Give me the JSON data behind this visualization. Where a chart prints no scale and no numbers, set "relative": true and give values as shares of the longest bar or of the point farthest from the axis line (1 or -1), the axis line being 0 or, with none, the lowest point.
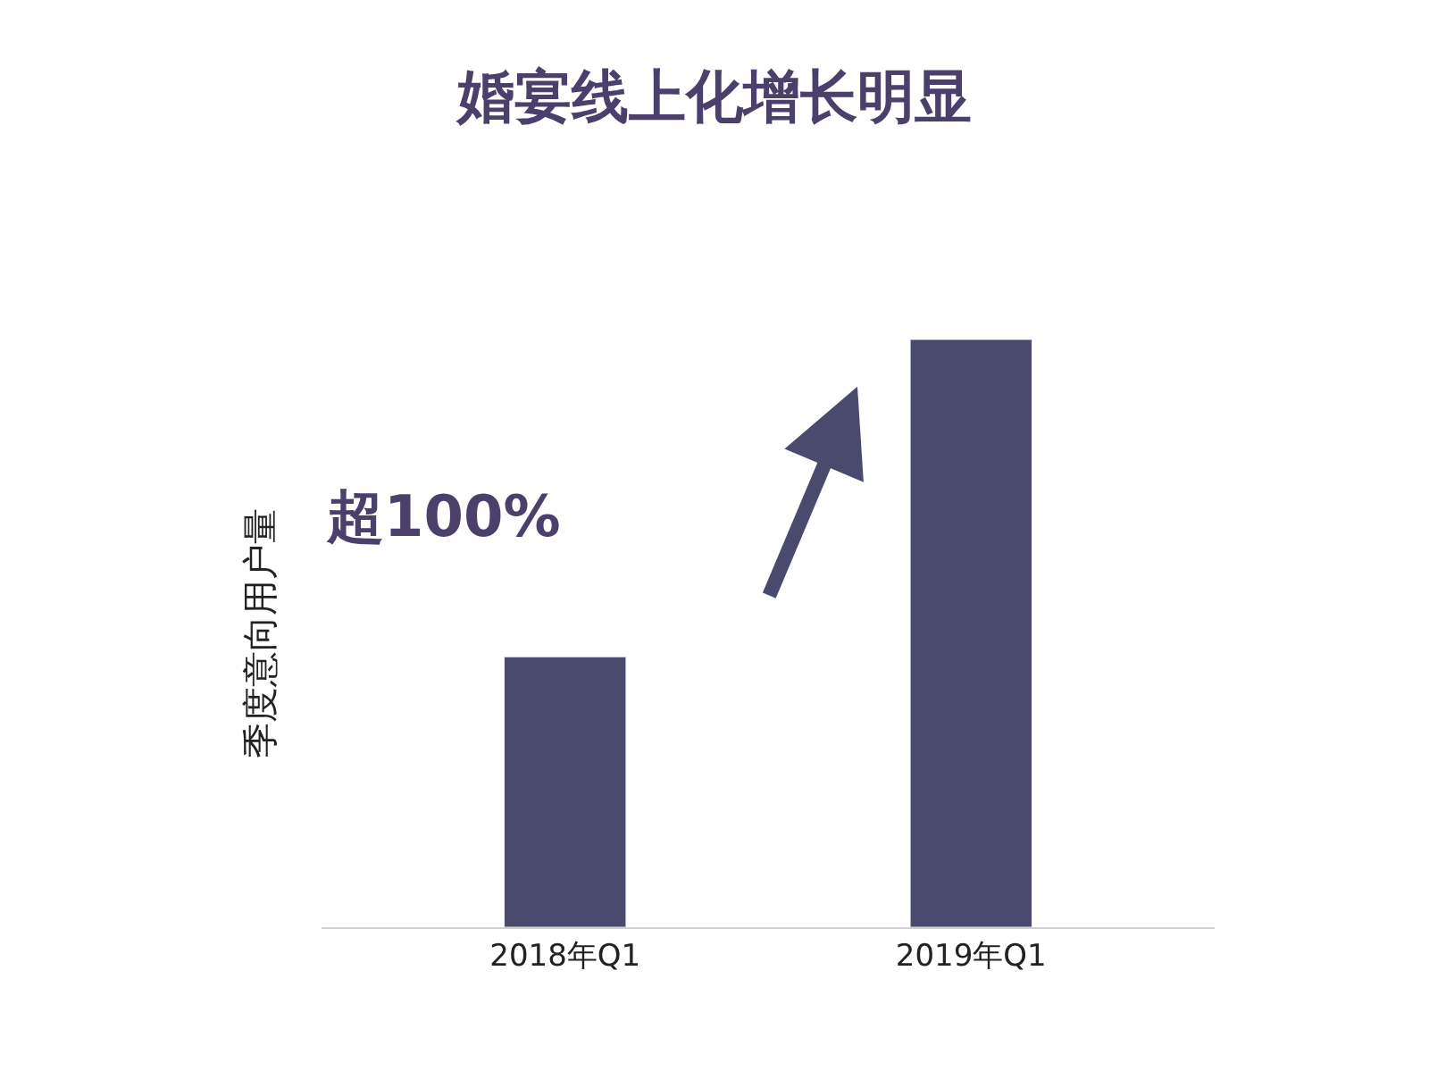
{
  "chart_data": {
    "type": "bar",
    "title": "婚宴线上化增长明显",
    "ylabel": "季度意向用户量",
    "categories": [
      "2018年Q1",
      "2019年Q1"
    ],
    "values": [
      0.46,
      1
    ],
    "color": "#4a4a6e",
    "relative": true,
    "annotations": [
      "超100%"
    ]
  }
}
